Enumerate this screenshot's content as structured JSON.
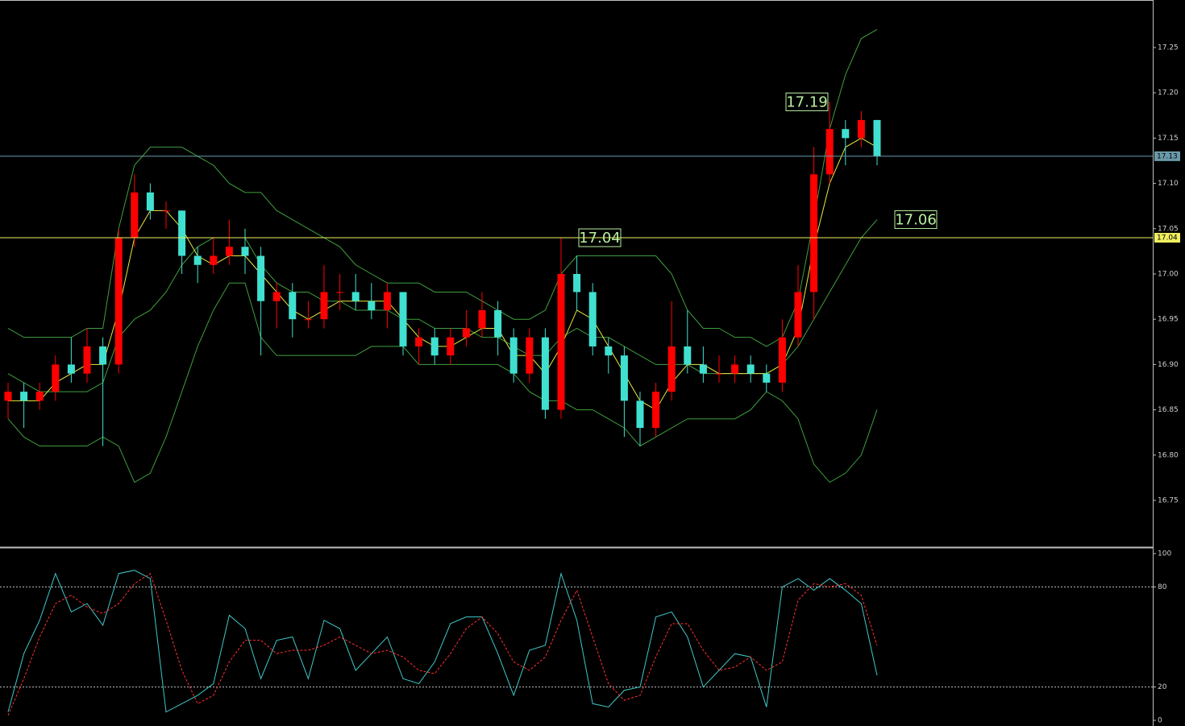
{
  "chart_data": [
    {
      "type": "candlestick",
      "up_color": "#ff0000",
      "down_color": "#40e0d0",
      "candles": [
        [
          16.86,
          16.88,
          16.84,
          16.87
        ],
        [
          16.87,
          16.88,
          16.83,
          16.86
        ],
        [
          16.86,
          16.88,
          16.85,
          16.87
        ],
        [
          16.87,
          16.91,
          16.86,
          16.9
        ],
        [
          16.9,
          16.93,
          16.88,
          16.89
        ],
        [
          16.89,
          16.94,
          16.88,
          16.92
        ],
        [
          16.92,
          16.93,
          16.81,
          16.9
        ],
        [
          16.9,
          17.05,
          16.89,
          17.04
        ],
        [
          17.04,
          17.11,
          17.03,
          17.09
        ],
        [
          17.09,
          17.1,
          17.06,
          17.07
        ],
        [
          17.07,
          17.08,
          17.05,
          17.07
        ],
        [
          17.07,
          17.07,
          17.0,
          17.02
        ],
        [
          17.02,
          17.03,
          16.99,
          17.01
        ],
        [
          17.01,
          17.04,
          17.0,
          17.02
        ],
        [
          17.02,
          17.06,
          17.01,
          17.03
        ],
        [
          17.03,
          17.05,
          17.0,
          17.02
        ],
        [
          17.02,
          17.03,
          16.91,
          16.97
        ],
        [
          16.97,
          16.99,
          16.94,
          16.98
        ],
        [
          16.98,
          16.99,
          16.93,
          16.95
        ],
        [
          16.95,
          16.97,
          16.94,
          16.95
        ],
        [
          16.95,
          17.01,
          16.94,
          16.98
        ],
        [
          16.98,
          17.0,
          16.96,
          16.98
        ],
        [
          16.98,
          17.0,
          16.96,
          16.97
        ],
        [
          16.97,
          16.99,
          16.95,
          16.96
        ],
        [
          16.96,
          16.99,
          16.94,
          16.98
        ],
        [
          16.98,
          16.98,
          16.91,
          16.92
        ],
        [
          16.92,
          16.94,
          16.9,
          16.93
        ],
        [
          16.93,
          16.94,
          16.9,
          16.91
        ],
        [
          16.91,
          16.94,
          16.9,
          16.93
        ],
        [
          16.93,
          16.96,
          16.92,
          16.94
        ],
        [
          16.94,
          16.98,
          16.93,
          16.96
        ],
        [
          16.96,
          16.97,
          16.91,
          16.93
        ],
        [
          16.93,
          16.94,
          16.88,
          16.89
        ],
        [
          16.89,
          16.94,
          16.88,
          16.93
        ],
        [
          16.93,
          16.94,
          16.84,
          16.85
        ],
        [
          16.85,
          17.04,
          16.84,
          17.0
        ],
        [
          17.0,
          17.02,
          16.96,
          16.98
        ],
        [
          16.98,
          16.99,
          16.91,
          16.92
        ],
        [
          16.92,
          16.93,
          16.89,
          16.91
        ],
        [
          16.91,
          16.92,
          16.82,
          16.86
        ],
        [
          16.86,
          16.87,
          16.81,
          16.83
        ],
        [
          16.83,
          16.88,
          16.82,
          16.87
        ],
        [
          16.87,
          16.97,
          16.86,
          16.92
        ],
        [
          16.92,
          16.96,
          16.89,
          16.9
        ],
        [
          16.9,
          16.92,
          16.88,
          16.89
        ],
        [
          16.89,
          16.91,
          16.88,
          16.89
        ],
        [
          16.89,
          16.91,
          16.88,
          16.9
        ],
        [
          16.9,
          16.91,
          16.88,
          16.89
        ],
        [
          16.89,
          16.9,
          16.87,
          16.88
        ],
        [
          16.88,
          16.95,
          16.87,
          16.93
        ],
        [
          16.93,
          17.01,
          16.92,
          16.98
        ],
        [
          16.98,
          17.14,
          16.95,
          17.11
        ],
        [
          17.11,
          17.19,
          17.1,
          17.16
        ],
        [
          17.16,
          17.17,
          17.12,
          17.15
        ],
        [
          17.15,
          17.18,
          17.14,
          17.17
        ],
        [
          17.17,
          17.17,
          17.12,
          17.13
        ]
      ],
      "lines": [
        {
          "color": "#3f9f3f",
          "values": [
            16.94,
            16.93,
            16.93,
            16.93,
            16.93,
            16.94,
            16.94,
            17.05,
            17.12,
            17.14,
            17.14,
            17.14,
            17.13,
            17.12,
            17.1,
            17.09,
            17.09,
            17.07,
            17.06,
            17.05,
            17.04,
            17.03,
            17.01,
            17.0,
            16.99,
            16.99,
            16.99,
            16.98,
            16.98,
            16.98,
            16.97,
            16.96,
            16.95,
            16.95,
            16.96,
            17.0,
            17.02,
            17.02,
            17.02,
            17.02,
            17.02,
            17.02,
            17.0,
            16.96,
            16.94,
            16.94,
            16.93,
            16.93,
            16.92,
            16.93,
            16.97,
            17.06,
            17.16,
            17.22,
            17.26,
            17.27
          ]
        },
        {
          "color": "#3f9f3f",
          "values": [
            16.89,
            16.88,
            16.87,
            16.87,
            16.87,
            16.87,
            16.88,
            16.93,
            16.95,
            16.96,
            16.98,
            17.01,
            17.03,
            17.04,
            17.04,
            17.04,
            17.01,
            16.99,
            16.98,
            16.98,
            16.97,
            16.97,
            16.96,
            16.96,
            16.96,
            16.95,
            16.95,
            16.94,
            16.94,
            16.94,
            16.93,
            16.93,
            16.92,
            16.91,
            16.91,
            16.93,
            16.94,
            16.93,
            16.93,
            16.92,
            16.91,
            16.9,
            16.9,
            16.9,
            16.89,
            16.89,
            16.89,
            16.89,
            16.89,
            16.9,
            16.92,
            16.95,
            16.98,
            17.01,
            17.04,
            17.06
          ]
        },
        {
          "color": "#3f9f3f",
          "values": [
            16.84,
            16.82,
            16.81,
            16.81,
            16.81,
            16.81,
            16.82,
            16.81,
            16.77,
            16.78,
            16.82,
            16.87,
            16.92,
            16.96,
            16.99,
            16.99,
            16.93,
            16.91,
            16.91,
            16.91,
            16.91,
            16.91,
            16.91,
            16.92,
            16.92,
            16.92,
            16.9,
            16.9,
            16.9,
            16.9,
            16.9,
            16.9,
            16.89,
            16.87,
            16.86,
            16.86,
            16.85,
            16.85,
            16.84,
            16.83,
            16.81,
            16.82,
            16.83,
            16.84,
            16.84,
            16.84,
            16.84,
            16.85,
            16.87,
            16.86,
            16.84,
            16.79,
            16.77,
            16.78,
            16.8,
            16.85
          ]
        },
        {
          "color": "#e8e840",
          "values": [
            16.86,
            16.86,
            16.86,
            16.88,
            16.89,
            16.9,
            16.9,
            16.96,
            17.04,
            17.07,
            17.07,
            17.05,
            17.02,
            17.01,
            17.02,
            17.02,
            17.0,
            16.98,
            16.96,
            16.95,
            16.96,
            16.97,
            16.97,
            16.97,
            16.97,
            16.95,
            16.93,
            16.92,
            16.92,
            16.93,
            16.94,
            16.94,
            16.91,
            16.91,
            16.89,
            16.92,
            16.96,
            16.95,
            16.92,
            16.89,
            16.86,
            16.85,
            16.88,
            16.9,
            16.9,
            16.89,
            16.89,
            16.89,
            16.89,
            16.9,
            16.94,
            17.03,
            17.1,
            17.14,
            17.15,
            17.14
          ]
        }
      ],
      "ylim": [
        16.7,
        17.3
      ],
      "yticks": [
        16.75,
        {
          "value": 16.8,
          "label": "16.80"
        },
        16.85,
        {
          "value": 16.9,
          "label": "16.90"
        },
        16.95,
        {
          "value": 17.0,
          "label": "17.00"
        },
        17.05,
        {
          "value": 17.1,
          "label": "17.10"
        },
        17.15,
        {
          "value": 17.2,
          "label": "17.20"
        },
        17.25
      ],
      "hlines": [
        {
          "value": 17.13,
          "color": "#6a9aaa"
        },
        {
          "value": 17.04,
          "color": "#f0f060"
        }
      ],
      "annotations": [
        17.19,
        17.04,
        17.06
      ]
    },
    {
      "type": "line",
      "series": [
        {
          "color": "#40c8c8",
          "dashed": false,
          "values": [
            5,
            40,
            60,
            88,
            65,
            70,
            57,
            88,
            90,
            85,
            5,
            10,
            15,
            22,
            63,
            55,
            25,
            48,
            50,
            25,
            60,
            55,
            30,
            40,
            50,
            25,
            22,
            35,
            58,
            62,
            62,
            40,
            15,
            42,
            45,
            88,
            60,
            10,
            8,
            18,
            20,
            62,
            65,
            50,
            20,
            30,
            40,
            38,
            8,
            80,
            85,
            78,
            85,
            78,
            70,
            27
          ]
        },
        {
          "color": "#ff3030",
          "dashed": true,
          "values": [
            3,
            25,
            50,
            70,
            75,
            68,
            64,
            70,
            82,
            88,
            60,
            30,
            10,
            15,
            35,
            48,
            48,
            40,
            42,
            42,
            45,
            50,
            45,
            40,
            42,
            38,
            30,
            28,
            40,
            55,
            62,
            52,
            35,
            30,
            38,
            60,
            78,
            50,
            22,
            12,
            15,
            38,
            58,
            58,
            42,
            30,
            32,
            38,
            30,
            35,
            72,
            82,
            80,
            82,
            75,
            45
          ]
        }
      ],
      "ylim": [
        0,
        100
      ],
      "yticks": [
        0,
        20,
        80,
        100
      ],
      "levels": [
        20,
        80
      ]
    }
  ]
}
